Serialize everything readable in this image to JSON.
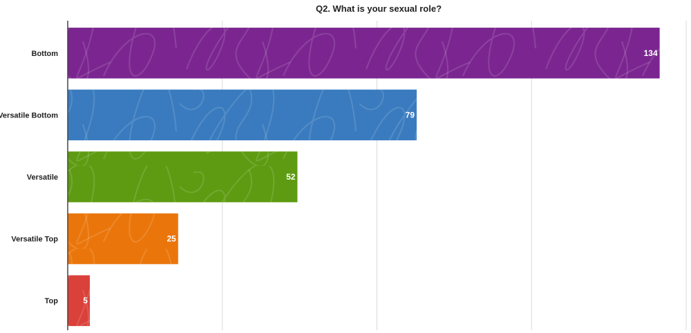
{
  "chart_data": {
    "type": "bar",
    "orientation": "horizontal",
    "title": "Q2. What is your sexual role?",
    "categories": [
      "Bottom",
      "Versatile Bottom",
      "Versatile",
      "Versatile Top",
      "Top"
    ],
    "values": [
      134,
      79,
      52,
      25,
      5
    ],
    "colors": [
      "#7b2690",
      "#3a7bbf",
      "#5e9b12",
      "#ea760b",
      "#d9413a"
    ],
    "xlim": [
      0,
      140
    ],
    "xticks": [
      0,
      35,
      70,
      105,
      140
    ],
    "grid": true,
    "data_labels": true,
    "legend": "none"
  }
}
